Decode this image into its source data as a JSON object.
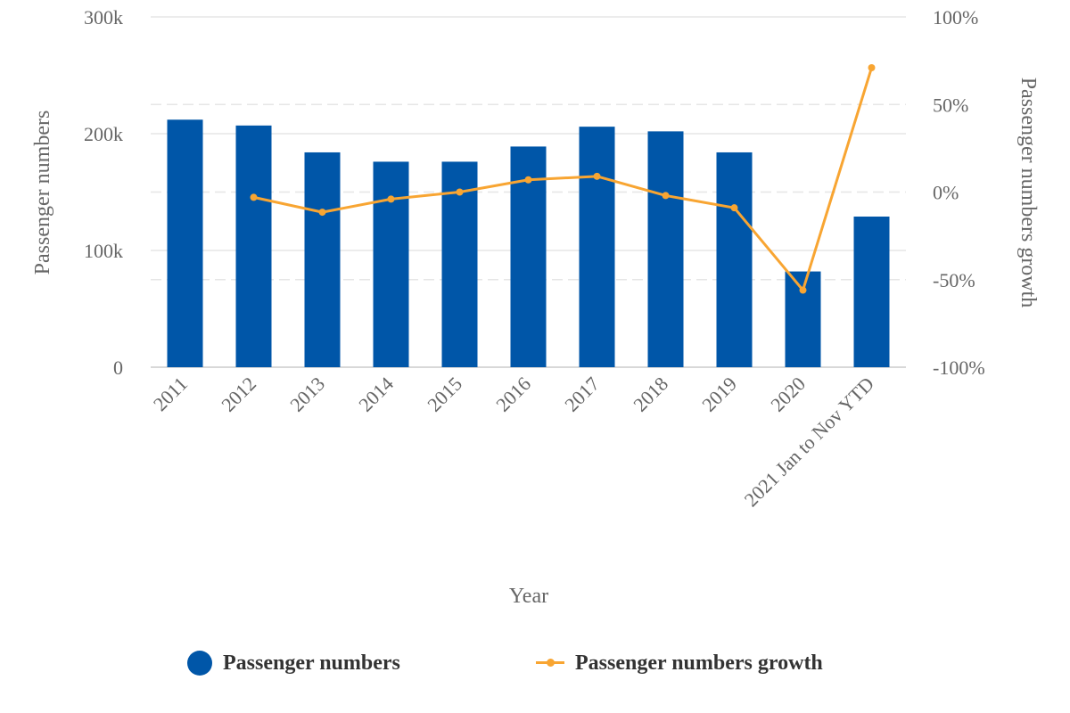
{
  "chart_data": {
    "type": "bar",
    "x_axis_title": "Year",
    "y_axis_left_title": "Passenger numbers",
    "y_axis_right_title": "Passenger numbers growth",
    "categories": [
      "2011",
      "2012",
      "2013",
      "2014",
      "2015",
      "2016",
      "2017",
      "2018",
      "2019",
      "2020",
      "2021 Jan to Nov YTD"
    ],
    "left_ticks": [
      "0",
      "100k",
      "200k",
      "300k"
    ],
    "right_ticks": [
      "-100%",
      "-50%",
      "0%",
      "50%",
      "100%"
    ],
    "left_range": [
      0,
      300000
    ],
    "right_range": [
      -100,
      100
    ],
    "series": [
      {
        "name": "Passenger numbers",
        "type": "bar",
        "axis": "left",
        "color": "#0056a8",
        "values": [
          212000,
          207000,
          184000,
          176000,
          176000,
          189000,
          206000,
          202000,
          184000,
          82000,
          129000
        ]
      },
      {
        "name": "Passenger numbers growth",
        "type": "line",
        "axis": "right",
        "color": "#f8a532",
        "values": [
          null,
          -3,
          -11.5,
          -4,
          0,
          7,
          9,
          -2,
          -9,
          -56,
          71
        ]
      }
    ],
    "grid": true,
    "legend_position": "bottom"
  }
}
